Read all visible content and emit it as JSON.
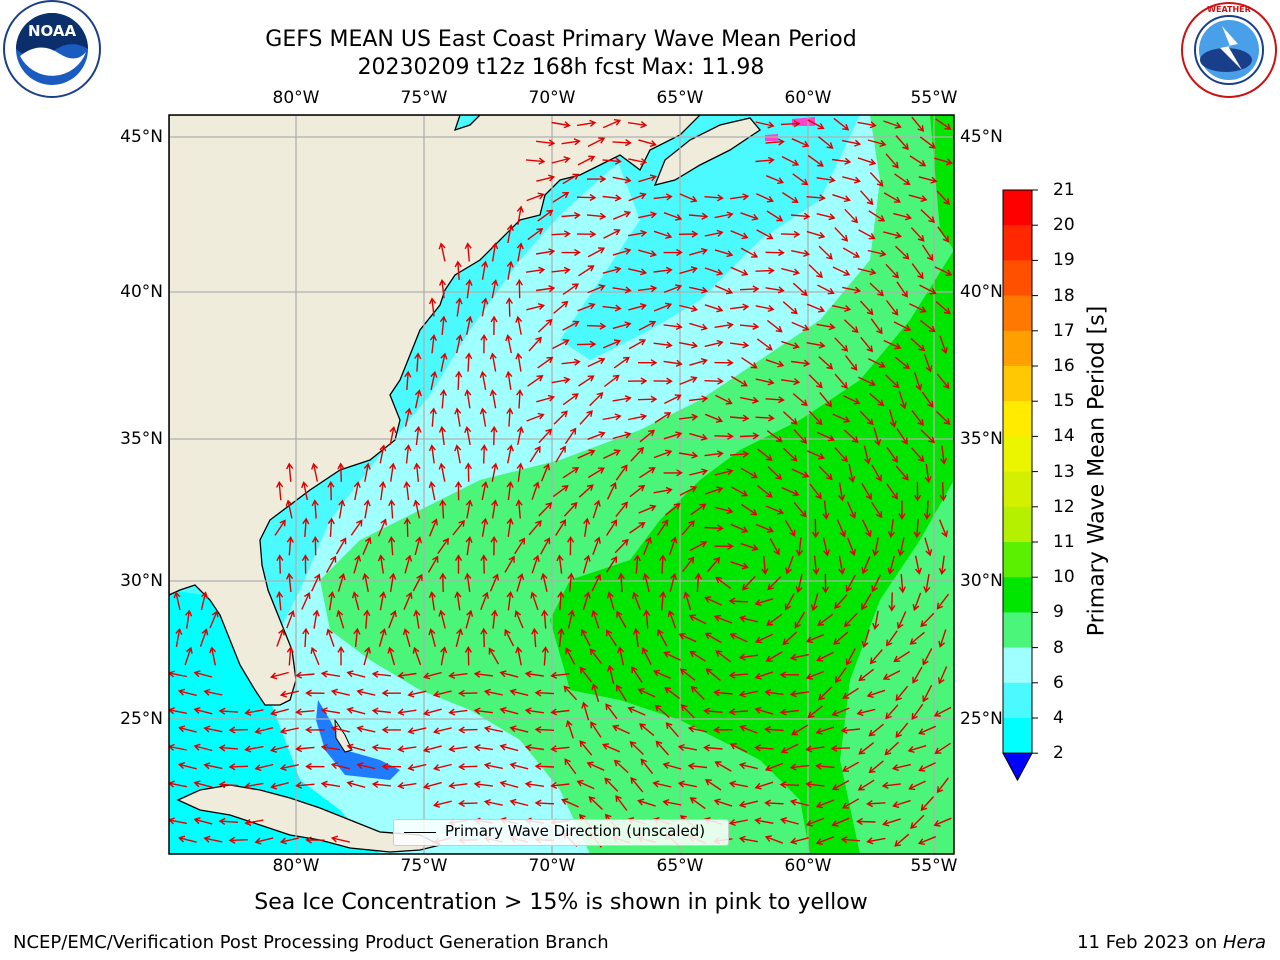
{
  "title": {
    "line1": "GEFS MEAN US East Coast Primary Wave Mean Period",
    "line2": "20230209 t12z 168h fcst   Max: 11.98"
  },
  "axes": {
    "lon_ticks": [
      "80°W",
      "75°W",
      "70°W",
      "65°W",
      "60°W",
      "55°W"
    ],
    "lat_ticks": [
      "45°N",
      "40°N",
      "35°N",
      "30°N",
      "25°N"
    ],
    "lon_range": [
      -85,
      -54
    ],
    "lat_range": [
      20.5,
      46
    ]
  },
  "colorbar": {
    "title": "Primary Wave Mean Period [s]",
    "levels": [
      "21",
      "20",
      "19",
      "18",
      "17",
      "16",
      "15",
      "14",
      "13",
      "12",
      "11",
      "10",
      "9",
      "8",
      "6",
      "4",
      "2"
    ],
    "colors": [
      "#ff0000",
      "#ff2800",
      "#ff5000",
      "#ff7800",
      "#ffa000",
      "#ffc800",
      "#ffeb00",
      "#ebf500",
      "#d2f000",
      "#b4f000",
      "#5af000",
      "#00e600",
      "#4bf57a",
      "#a0ffff",
      "#4bfaff",
      "#00ffff",
      "#0080ff",
      "#0000ff"
    ]
  },
  "legend": {
    "label": "Primary Wave Direction (unscaled)"
  },
  "caption": "Sea Ice Concentration > 15% is shown in pink to yellow",
  "footer": {
    "left": "NCEP/EMC/Verification Post Processing Product Generation Branch",
    "right_date": "11 Feb 2023 on ",
    "right_host": "Hera"
  },
  "logos": {
    "left_text": "NOAA",
    "left_ring": "NATIONAL OCEANIC AND ATMOSPHERIC ADMINISTRATION · U.S. DEPARTMENT OF COMMERCE",
    "right_ring": "NATIONAL WEATHER SERVICE"
  },
  "colors": {
    "land": "#efecdc",
    "arrow": "#e00000",
    "grid": "#b0b0b0",
    "ice": "#ff44cc"
  }
}
